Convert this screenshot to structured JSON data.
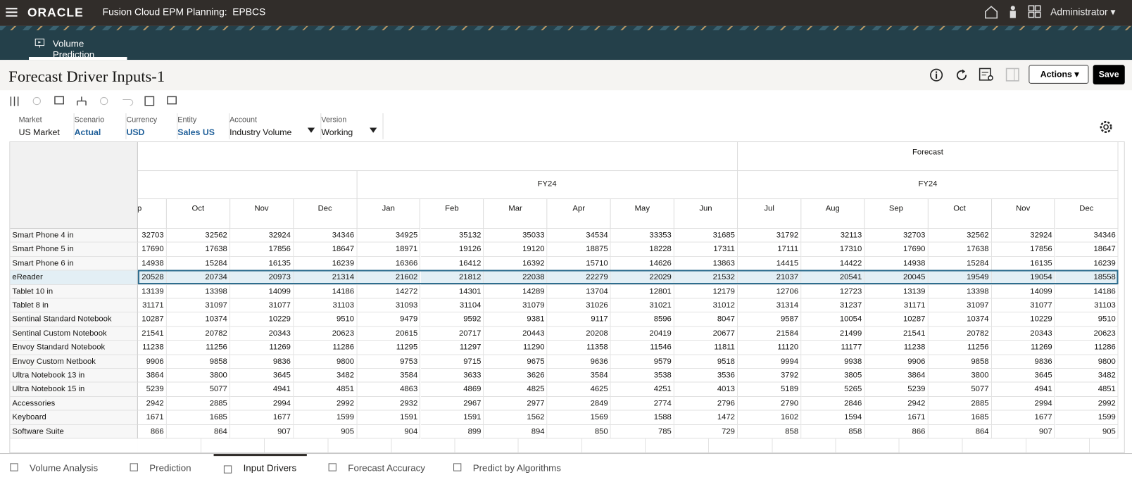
{
  "header": {
    "brand": "ORACLE",
    "product": "Fusion Cloud EPM Planning:  EPBCS",
    "user": "Administrator"
  },
  "nav_tab": "Volume Prediction",
  "page": {
    "title": "Forecast Driver Inputs-1",
    "actions": "Actions",
    "save": "Save"
  },
  "pov": [
    {
      "label": "Market",
      "value": "US Market"
    },
    {
      "label": "Scenario",
      "value": "Actual"
    },
    {
      "label": "Currency",
      "value": "USD"
    },
    {
      "label": "Entity",
      "value": "Sales US"
    },
    {
      "label": "Account",
      "value": "Industry Volume"
    },
    {
      "label": "Version",
      "value": "Working"
    }
  ],
  "table": {
    "scenario": "Forecast",
    "years": [
      "FY24",
      "FY24"
    ],
    "months": [
      "Sep",
      "Oct",
      "Nov",
      "Dec",
      "Jan",
      "Feb",
      "Mar",
      "Apr",
      "May",
      "Jun",
      "Jul",
      "Aug",
      "Sep",
      "Oct",
      "Nov",
      "Dec"
    ],
    "rows": [
      {
        "label": "Smart Phone 4 in",
        "values": [
          32703,
          32562,
          32924,
          34346,
          34925,
          35132,
          35033,
          34534,
          33353,
          31685,
          31792,
          32113,
          32703,
          32562,
          32924,
          34346
        ]
      },
      {
        "label": "Smart Phone 5 in",
        "values": [
          17690,
          17638,
          17856,
          18647,
          18971,
          19126,
          19120,
          18875,
          18228,
          17311,
          17111,
          17310,
          17690,
          17638,
          17856,
          18647
        ]
      },
      {
        "label": "Smart Phone 6 in",
        "values": [
          14938,
          15284,
          16135,
          16239,
          16366,
          16412,
          16392,
          15710,
          14626,
          13863,
          14415,
          14422,
          14938,
          15284,
          16135,
          16239
        ]
      },
      {
        "label": "eReader",
        "values": [
          20528,
          20734,
          20973,
          21314,
          21602,
          21812,
          22038,
          22279,
          22029,
          21532,
          21037,
          20541,
          20045,
          19549,
          19054,
          18558
        ]
      },
      {
        "label": "Tablet 10 in",
        "values": [
          13139,
          13398,
          14099,
          14186,
          14272,
          14301,
          14289,
          13704,
          12801,
          12179,
          12706,
          12723,
          13139,
          13398,
          14099,
          14186
        ]
      },
      {
        "label": "Tablet 8 in",
        "values": [
          31171,
          31097,
          31077,
          31103,
          31093,
          31104,
          31079,
          31026,
          31021,
          31012,
          31314,
          31237,
          31171,
          31097,
          31077,
          31103
        ]
      },
      {
        "label": "Sentinal Standard Notebook",
        "values": [
          10287,
          10374,
          10229,
          9510,
          9479,
          9592,
          9381,
          9117,
          8596,
          8047,
          9587,
          10054,
          10287,
          10374,
          10229,
          9510
        ]
      },
      {
        "label": "Sentinal Custom Notebook",
        "values": [
          21541,
          20782,
          20343,
          20623,
          20615,
          20717,
          20443,
          20208,
          20419,
          20677,
          21584,
          21499,
          21541,
          20782,
          20343,
          20623
        ]
      },
      {
        "label": "Envoy Standard Notebook",
        "values": [
          11238,
          11256,
          11269,
          11286,
          11295,
          11297,
          11290,
          11358,
          11546,
          11811,
          11120,
          11177,
          11238,
          11256,
          11269,
          11286
        ]
      },
      {
        "label": "Envoy Custom Netbook",
        "values": [
          9906,
          9858,
          9836,
          9800,
          9753,
          9715,
          9675,
          9636,
          9579,
          9518,
          9994,
          9938,
          9906,
          9858,
          9836,
          9800
        ]
      },
      {
        "label": "Ultra Notebook 13 in",
        "values": [
          3864,
          3800,
          3645,
          3482,
          3584,
          3633,
          3626,
          3584,
          3538,
          3536,
          3792,
          3805,
          3864,
          3800,
          3645,
          3482
        ]
      },
      {
        "label": "Ultra Notebook 15 in",
        "values": [
          5239,
          5077,
          4941,
          4851,
          4863,
          4869,
          4825,
          4625,
          4251,
          4013,
          5189,
          5265,
          5239,
          5077,
          4941,
          4851
        ]
      },
      {
        "label": "Accessories",
        "values": [
          2942,
          2885,
          2994,
          2992,
          2932,
          2967,
          2977,
          2849,
          2774,
          2796,
          2790,
          2846,
          2942,
          2885,
          2994,
          2992
        ]
      },
      {
        "label": "Keyboard",
        "values": [
          1671,
          1685,
          1677,
          1599,
          1591,
          1591,
          1562,
          1569,
          1588,
          1472,
          1602,
          1594,
          1671,
          1685,
          1677,
          1599
        ]
      },
      {
        "label": "Software Suite",
        "values": [
          866,
          864,
          907,
          905,
          904,
          899,
          894,
          850,
          785,
          729,
          858,
          858,
          866,
          864,
          907,
          905
        ]
      }
    ]
  },
  "bottom_tabs": [
    "Volume Analysis",
    "Prediction",
    "Input Drivers",
    "Forecast Accuracy",
    "Predict by Algorithms"
  ]
}
